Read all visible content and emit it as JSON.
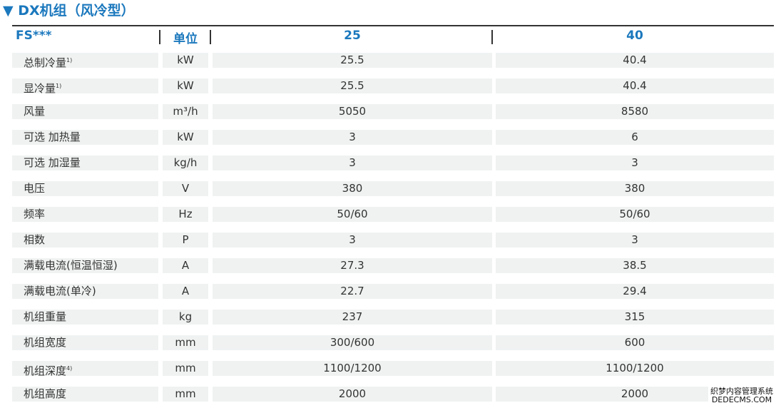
{
  "title": "▼ DX机组（风冷型）",
  "header": {
    "model": "FS***",
    "unit": "单位",
    "columns": [
      "25",
      "40"
    ]
  },
  "rows": [
    {
      "label": "总制冷量",
      "note": "1)",
      "unit": "kW",
      "values": [
        "25.5",
        "40.4"
      ]
    },
    {
      "label": "显冷量",
      "note": "1)",
      "unit": "kW",
      "values": [
        "25.5",
        "40.4"
      ]
    },
    {
      "label": "风量",
      "unit": "m³/h",
      "values": [
        "5050",
        "8580"
      ]
    },
    {
      "label": "可选 加热量",
      "unit": "kW",
      "values": [
        "3",
        "6"
      ]
    },
    {
      "label": "可选 加湿量",
      "unit": "kg/h",
      "values": [
        "3",
        "3"
      ]
    },
    {
      "label": "电压",
      "unit": "V",
      "values": [
        "380",
        "380"
      ]
    },
    {
      "label": "频率",
      "unit": "Hz",
      "values": [
        "50/60",
        "50/60"
      ]
    },
    {
      "label": "相数",
      "unit": "P",
      "values": [
        "3",
        "3"
      ]
    },
    {
      "label": "满载电流(恒温恒湿)",
      "unit": "A",
      "values": [
        "27.3",
        "38.5"
      ]
    },
    {
      "label": "满载电流(单冷)",
      "unit": "A",
      "values": [
        "22.7",
        "29.4"
      ]
    },
    {
      "label": "机组重量",
      "unit": "kg",
      "values": [
        "237",
        "315"
      ]
    },
    {
      "label": "机组宽度",
      "unit": "mm",
      "values": [
        "300/600",
        "600"
      ]
    },
    {
      "label": "机组深度",
      "note": "4)",
      "unit": "mm",
      "values": [
        "1100/1200",
        "1100/1200"
      ]
    },
    {
      "label": "机组高度",
      "unit": "mm",
      "values": [
        "2000",
        "2000"
      ]
    }
  ],
  "watermark": {
    "line1": "织梦内容管理系统",
    "line2": "DEDECMS.COM"
  }
}
